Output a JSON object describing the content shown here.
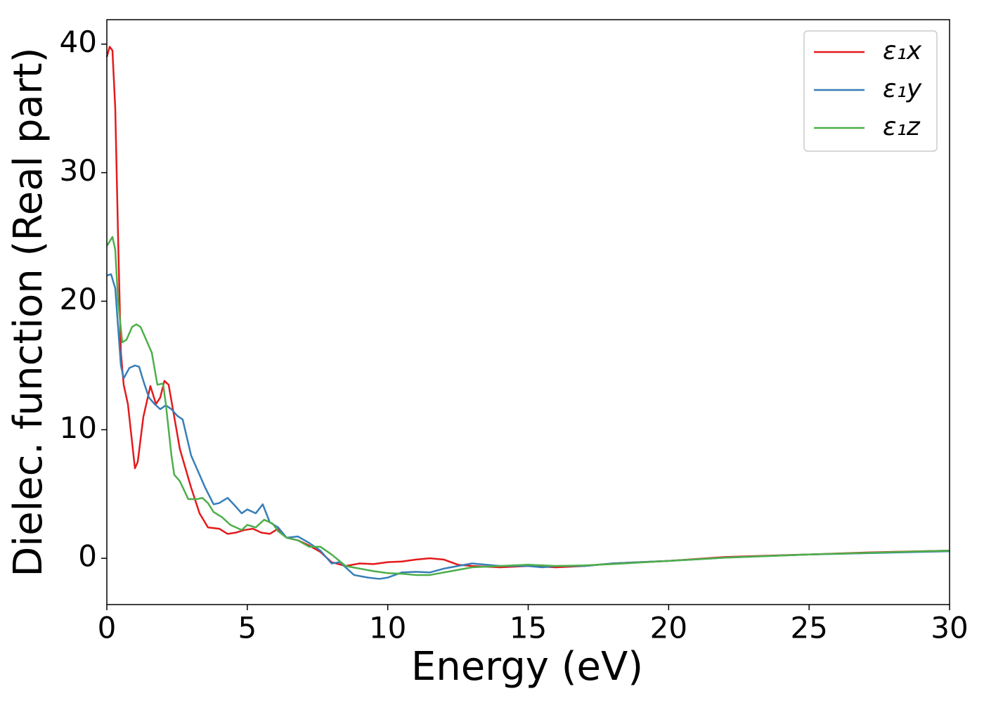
{
  "chart_data": {
    "type": "line",
    "xlabel": "Energy (eV)",
    "ylabel": "Dielec. function (Real part)",
    "xlim": [
      0,
      30
    ],
    "ylim": [
      -3.6,
      41.9
    ],
    "xticks": [
      0,
      5,
      10,
      15,
      20,
      25,
      30
    ],
    "yticks": [
      0,
      10,
      20,
      30,
      40
    ],
    "legend": "upper right",
    "series": [
      {
        "name": "ε₁x",
        "color": "#e41a1c",
        "x": [
          0,
          0.1,
          0.2,
          0.3,
          0.4,
          0.5,
          0.6,
          0.75,
          0.9,
          1.0,
          1.1,
          1.3,
          1.55,
          1.75,
          1.9,
          2.05,
          2.2,
          2.4,
          2.6,
          3.0,
          3.3,
          3.6,
          4.0,
          4.3,
          4.6,
          4.9,
          5.2,
          5.5,
          5.8,
          6.1,
          6.4,
          6.8,
          7.2,
          7.6,
          8.0,
          8.5,
          9.0,
          9.5,
          10.0,
          10.5,
          11.0,
          11.5,
          12.0,
          12.5,
          13,
          14,
          15,
          16,
          17,
          18,
          19,
          20,
          22,
          25,
          27,
          30
        ],
        "values": [
          39,
          39.8,
          39.5,
          35,
          25,
          16,
          13.5,
          12,
          9,
          7,
          7.5,
          11,
          13.4,
          12,
          12.5,
          13.8,
          13.5,
          11,
          8.5,
          5.5,
          3.5,
          2.4,
          2.3,
          1.9,
          2.0,
          2.2,
          2.3,
          2.0,
          1.9,
          2.3,
          1.6,
          1.4,
          1.0,
          0.5,
          -0.3,
          -0.6,
          -0.4,
          -0.45,
          -0.3,
          -0.25,
          -0.1,
          0.0,
          -0.1,
          -0.5,
          -0.6,
          -0.7,
          -0.6,
          -0.7,
          -0.6,
          -0.4,
          -0.3,
          -0.2,
          0.1,
          0.3,
          0.45,
          0.6
        ]
      },
      {
        "name": "ε₁y",
        "color": "#377eb8",
        "x": [
          0,
          0.15,
          0.3,
          0.4,
          0.5,
          0.6,
          0.8,
          1.0,
          1.15,
          1.3,
          1.5,
          1.7,
          1.9,
          2.1,
          2.3,
          2.5,
          2.7,
          3.0,
          3.3,
          3.5,
          3.8,
          4.0,
          4.3,
          4.6,
          4.8,
          5.0,
          5.3,
          5.55,
          5.8,
          6.1,
          6.4,
          6.8,
          7.2,
          7.6,
          8.0,
          8.3,
          8.8,
          9.3,
          9.7,
          10.0,
          10.5,
          11.0,
          11.5,
          12,
          12.5,
          13,
          14,
          15,
          15.5,
          16,
          17,
          18,
          20,
          22,
          25,
          30
        ],
        "values": [
          22,
          22.1,
          21,
          18,
          15,
          14,
          14.8,
          15,
          14.9,
          13.8,
          12.5,
          12,
          11.6,
          11.9,
          11.6,
          11.1,
          10.8,
          8,
          6.5,
          5.5,
          4.2,
          4.3,
          4.7,
          4,
          3.5,
          3.8,
          3.5,
          4.2,
          2.8,
          2.4,
          1.6,
          1.7,
          1.2,
          0.6,
          -0.4,
          -0.3,
          -1.3,
          -1.5,
          -1.6,
          -1.5,
          -1.1,
          -1.05,
          -1.1,
          -0.8,
          -0.6,
          -0.4,
          -0.6,
          -0.6,
          -0.7,
          -0.6,
          -0.6,
          -0.4,
          -0.2,
          0.05,
          0.3,
          0.55
        ]
      },
      {
        "name": "ε₁z",
        "color": "#4daf4a",
        "x": [
          0,
          0.2,
          0.3,
          0.4,
          0.55,
          0.7,
          0.9,
          1.05,
          1.2,
          1.4,
          1.6,
          1.8,
          2.0,
          2.1,
          2.3,
          2.4,
          2.6,
          2.9,
          3.2,
          3.4,
          3.6,
          3.8,
          4.1,
          4.4,
          4.8,
          5.0,
          5.3,
          5.6,
          5.9,
          6.1,
          6.4,
          6.8,
          7.2,
          7.6,
          8.0,
          8.5,
          9.0,
          9.5,
          10.0,
          10.5,
          11.0,
          11.5,
          12,
          13,
          14,
          15,
          16,
          17,
          18,
          20,
          22,
          25,
          30
        ],
        "values": [
          24.3,
          25,
          24,
          20,
          16.8,
          17,
          18,
          18.2,
          18,
          17,
          16,
          13.5,
          13.6,
          12,
          8,
          6.5,
          6,
          4.6,
          4.6,
          4.7,
          4.3,
          3.6,
          3.2,
          2.6,
          2.2,
          2.6,
          2.4,
          3.0,
          2.7,
          2.1,
          1.6,
          1.4,
          0.9,
          0.9,
          0.3,
          -0.6,
          -0.8,
          -1.0,
          -1.15,
          -1.2,
          -1.3,
          -1.3,
          -1.1,
          -0.7,
          -0.6,
          -0.5,
          -0.6,
          -0.55,
          -0.45,
          -0.2,
          0.05,
          0.3,
          0.6
        ]
      }
    ]
  }
}
